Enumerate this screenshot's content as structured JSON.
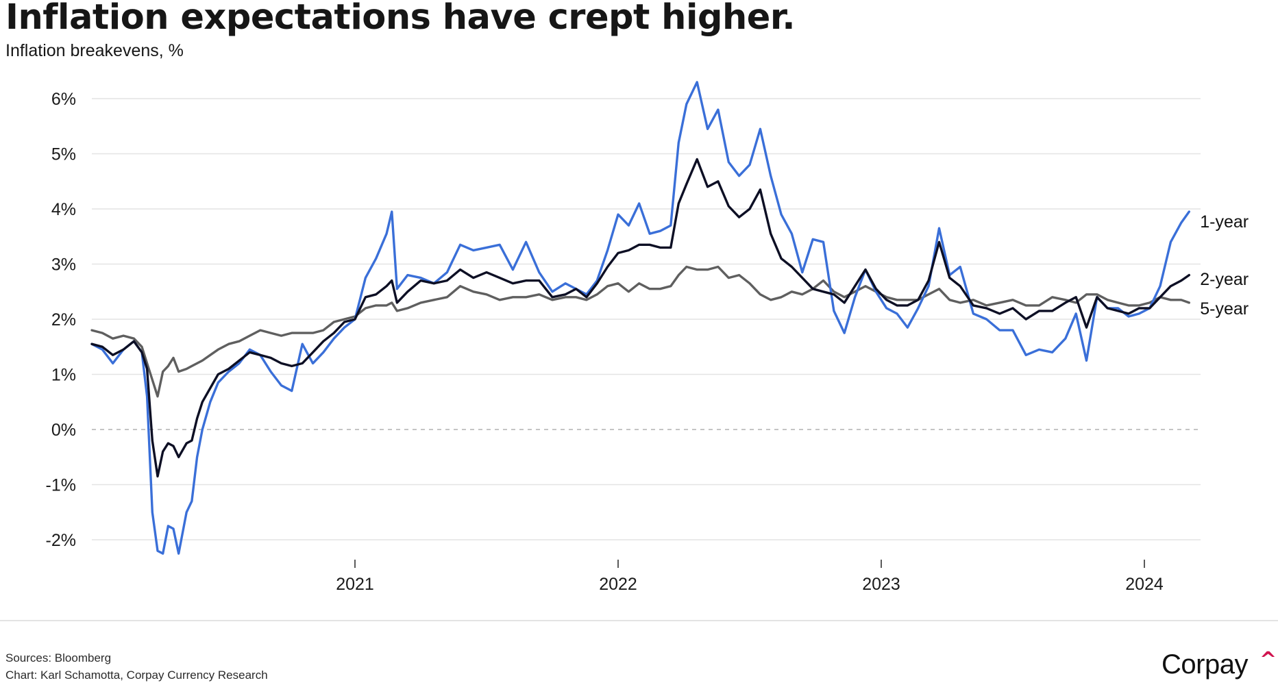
{
  "header": {
    "title": "Inflation expectations have crept higher.",
    "subtitle": "Inflation breakevens, %"
  },
  "footer": {
    "sources": "Sources: Bloomberg",
    "credit": "Chart: Karl Schamotta, Corpay Currency Research",
    "logo_text": "Corpay",
    "logo_mark": "^",
    "logo_mark_color": "#d0134e"
  },
  "chart_data": {
    "type": "line",
    "title": "Inflation expectations have crept higher.",
    "subtitle": "Inflation breakevens, %",
    "xlabel": "",
    "ylabel": "",
    "xlim": [
      2020.0,
      2024.25
    ],
    "ylim": [
      -2.3,
      6.3
    ],
    "yticks": [
      6,
      5,
      4,
      3,
      2,
      1,
      0,
      -1,
      -2
    ],
    "ytick_labels": [
      "6%",
      "5%",
      "4%",
      "3%",
      "2%",
      "1%",
      "0%",
      "-1%",
      "-2%"
    ],
    "xticks": [
      2021,
      2022,
      2023,
      2024
    ],
    "xtick_labels": [
      "2021",
      "2022",
      "2023",
      "2024"
    ],
    "grid": "horizontal",
    "zero_line": "dashed",
    "legend": "end-of-line labels (right)",
    "x": [
      2020.0,
      2020.04,
      2020.08,
      2020.12,
      2020.16,
      2020.19,
      2020.21,
      2020.23,
      2020.25,
      2020.27,
      2020.29,
      2020.31,
      2020.33,
      2020.36,
      2020.38,
      2020.4,
      2020.42,
      2020.45,
      2020.48,
      2020.52,
      2020.56,
      2020.6,
      2020.64,
      2020.68,
      2020.72,
      2020.76,
      2020.8,
      2020.84,
      2020.88,
      2020.92,
      2020.96,
      2021.0,
      2021.04,
      2021.08,
      2021.12,
      2021.14,
      2021.16,
      2021.2,
      2021.25,
      2021.3,
      2021.35,
      2021.4,
      2021.45,
      2021.5,
      2021.55,
      2021.6,
      2021.65,
      2021.7,
      2021.75,
      2021.8,
      2021.84,
      2021.88,
      2021.92,
      2021.96,
      2022.0,
      2022.04,
      2022.08,
      2022.12,
      2022.16,
      2022.2,
      2022.23,
      2022.26,
      2022.3,
      2022.34,
      2022.38,
      2022.42,
      2022.46,
      2022.5,
      2022.54,
      2022.58,
      2022.62,
      2022.66,
      2022.7,
      2022.74,
      2022.78,
      2022.82,
      2022.86,
      2022.9,
      2022.94,
      2022.98,
      2023.02,
      2023.06,
      2023.1,
      2023.14,
      2023.18,
      2023.22,
      2023.26,
      2023.3,
      2023.35,
      2023.4,
      2023.45,
      2023.5,
      2023.55,
      2023.6,
      2023.65,
      2023.7,
      2023.74,
      2023.78,
      2023.82,
      2023.86,
      2023.9,
      2023.94,
      2023.98,
      2024.02,
      2024.06,
      2024.1,
      2024.14,
      2024.17
    ],
    "series": [
      {
        "name": "1-year",
        "color": "#3a6fd8",
        "values": [
          1.55,
          1.45,
          1.2,
          1.45,
          1.6,
          1.4,
          0.6,
          -1.5,
          -2.2,
          -2.25,
          -1.75,
          -1.8,
          -2.25,
          -1.5,
          -1.3,
          -0.5,
          0.0,
          0.5,
          0.85,
          1.05,
          1.2,
          1.45,
          1.35,
          1.05,
          0.8,
          0.7,
          1.55,
          1.2,
          1.4,
          1.65,
          1.85,
          2.0,
          2.75,
          3.1,
          3.55,
          3.95,
          2.55,
          2.8,
          2.75,
          2.65,
          2.85,
          3.35,
          3.25,
          3.3,
          3.35,
          2.9,
          3.4,
          2.85,
          2.5,
          2.65,
          2.55,
          2.45,
          2.7,
          3.25,
          3.9,
          3.7,
          4.1,
          3.55,
          3.6,
          3.7,
          5.2,
          5.9,
          6.3,
          5.45,
          5.8,
          4.85,
          4.6,
          4.8,
          5.45,
          4.6,
          3.9,
          3.55,
          2.85,
          3.45,
          3.4,
          2.15,
          1.75,
          2.4,
          2.9,
          2.5,
          2.2,
          2.1,
          1.85,
          2.2,
          2.6,
          3.65,
          2.8,
          2.95,
          2.1,
          2.0,
          1.8,
          1.8,
          1.35,
          1.45,
          1.4,
          1.65,
          2.1,
          1.25,
          2.4,
          2.2,
          2.2,
          2.05,
          2.1,
          2.2,
          2.6,
          3.4,
          3.75,
          3.95
        ]
      },
      {
        "name": "2-year",
        "color": "#0d0f24",
        "values": [
          1.55,
          1.5,
          1.35,
          1.45,
          1.6,
          1.4,
          1.1,
          -0.2,
          -0.85,
          -0.4,
          -0.25,
          -0.3,
          -0.5,
          -0.25,
          -0.2,
          0.2,
          0.5,
          0.75,
          1.0,
          1.1,
          1.25,
          1.4,
          1.35,
          1.3,
          1.2,
          1.15,
          1.2,
          1.4,
          1.6,
          1.75,
          1.95,
          2.0,
          2.4,
          2.45,
          2.6,
          2.7,
          2.3,
          2.5,
          2.7,
          2.65,
          2.7,
          2.9,
          2.75,
          2.85,
          2.75,
          2.65,
          2.7,
          2.7,
          2.4,
          2.45,
          2.55,
          2.4,
          2.65,
          2.95,
          3.2,
          3.25,
          3.35,
          3.35,
          3.3,
          3.3,
          4.1,
          4.45,
          4.9,
          4.4,
          4.5,
          4.05,
          3.85,
          4.0,
          4.35,
          3.55,
          3.1,
          2.95,
          2.75,
          2.55,
          2.5,
          2.45,
          2.3,
          2.6,
          2.9,
          2.55,
          2.35,
          2.25,
          2.25,
          2.35,
          2.7,
          3.4,
          2.75,
          2.6,
          2.25,
          2.2,
          2.1,
          2.2,
          2.0,
          2.15,
          2.15,
          2.3,
          2.4,
          1.85,
          2.4,
          2.2,
          2.15,
          2.1,
          2.2,
          2.2,
          2.4,
          2.6,
          2.7,
          2.8
        ]
      },
      {
        "name": "5-year",
        "color": "#5f5f5f",
        "values": [
          1.8,
          1.75,
          1.65,
          1.7,
          1.65,
          1.5,
          1.2,
          0.9,
          0.6,
          1.05,
          1.15,
          1.3,
          1.05,
          1.1,
          1.15,
          1.2,
          1.25,
          1.35,
          1.45,
          1.55,
          1.6,
          1.7,
          1.8,
          1.75,
          1.7,
          1.75,
          1.75,
          1.75,
          1.8,
          1.95,
          2.0,
          2.05,
          2.2,
          2.25,
          2.25,
          2.3,
          2.15,
          2.2,
          2.3,
          2.35,
          2.4,
          2.6,
          2.5,
          2.45,
          2.35,
          2.4,
          2.4,
          2.45,
          2.35,
          2.4,
          2.4,
          2.35,
          2.45,
          2.6,
          2.65,
          2.5,
          2.65,
          2.55,
          2.55,
          2.6,
          2.8,
          2.95,
          2.9,
          2.9,
          2.95,
          2.75,
          2.8,
          2.65,
          2.45,
          2.35,
          2.4,
          2.5,
          2.45,
          2.55,
          2.7,
          2.5,
          2.4,
          2.5,
          2.6,
          2.5,
          2.4,
          2.35,
          2.35,
          2.35,
          2.45,
          2.55,
          2.35,
          2.3,
          2.35,
          2.25,
          2.3,
          2.35,
          2.25,
          2.25,
          2.4,
          2.35,
          2.3,
          2.45,
          2.45,
          2.35,
          2.3,
          2.25,
          2.25,
          2.3,
          2.4,
          2.35,
          2.35,
          2.3
        ]
      }
    ]
  }
}
